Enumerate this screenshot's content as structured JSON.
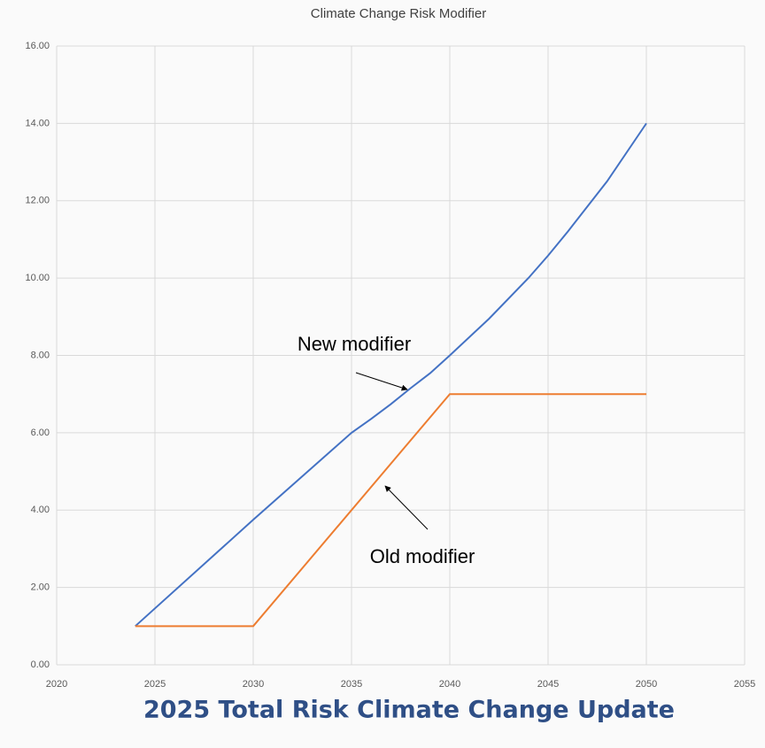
{
  "chart_data": {
    "type": "line",
    "title": "Climate Change Risk Modifier",
    "footer": "2025 Total Risk Climate Change Update",
    "series": [
      {
        "name": "New modifier",
        "color": "#4472c4",
        "x": [
          2024,
          2030,
          2035,
          2036,
          2037,
          2038,
          2039,
          2040,
          2042,
          2044,
          2045,
          2046,
          2048,
          2050
        ],
        "values": [
          1,
          3.75,
          6,
          6.36,
          6.74,
          7.15,
          7.54,
          8,
          8.95,
          10.0,
          10.58,
          11.2,
          12.5,
          14
        ]
      },
      {
        "name": "Old modifier",
        "color": "#ed7d31",
        "x": [
          2024,
          2030,
          2040,
          2050
        ],
        "values": [
          1,
          1,
          7,
          7
        ]
      }
    ],
    "annotations": [
      "New modifier",
      "Old modifier"
    ],
    "xlim": [
      2020,
      2055
    ],
    "xticks": [
      2020,
      2025,
      2030,
      2035,
      2040,
      2045,
      2050,
      2055
    ],
    "ylim": [
      0,
      16
    ],
    "yticks": [
      {
        "value": 0,
        "label": "0.00"
      },
      {
        "value": 2,
        "label": "2.00"
      },
      {
        "value": 4,
        "label": "4.00"
      },
      {
        "value": 6,
        "label": "6.00"
      },
      {
        "value": 8,
        "label": "8.00"
      },
      {
        "value": 10,
        "label": "10.00"
      },
      {
        "value": 12,
        "label": "12.00"
      },
      {
        "value": 14,
        "label": "14.00"
      },
      {
        "value": 16,
        "label": "16.00"
      }
    ],
    "grid": true
  }
}
